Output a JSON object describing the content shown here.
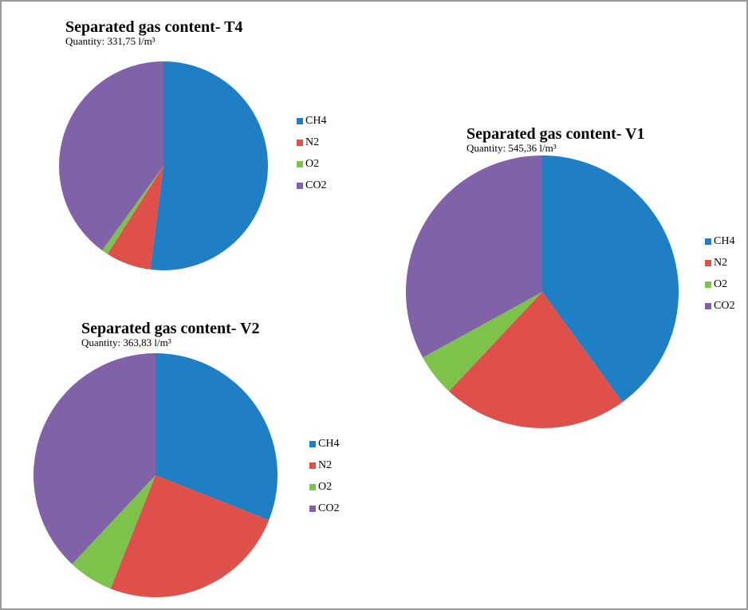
{
  "chart_data": [
    {
      "type": "pie",
      "title": "Separated gas content- T4",
      "subtitle": "Quantity: 331,75 l/m³",
      "categories": [
        "CH4",
        "N2",
        "O2",
        "CO2"
      ],
      "values": [
        52,
        7,
        1,
        40
      ],
      "colors": [
        "#1f7fc4",
        "#e0504a",
        "#7dc24a",
        "#8062a8"
      ]
    },
    {
      "type": "pie",
      "title": "Separated gas content- V1",
      "subtitle": "Quantity: 545,36 l/m³",
      "categories": [
        "CH4",
        "N2",
        "O2",
        "CO2"
      ],
      "values": [
        40,
        22,
        5,
        33
      ],
      "colors": [
        "#1f7fc4",
        "#e0504a",
        "#7dc24a",
        "#8062a8"
      ]
    },
    {
      "type": "pie",
      "title": "Separated gas content- V2",
      "subtitle": "Quantity: 363,83 l/m³",
      "categories": [
        "CH4",
        "N2",
        "O2",
        "CO2"
      ],
      "values": [
        31,
        25,
        6,
        38
      ],
      "colors": [
        "#1f7fc4",
        "#e0504a",
        "#7dc24a",
        "#8062a8"
      ]
    }
  ]
}
